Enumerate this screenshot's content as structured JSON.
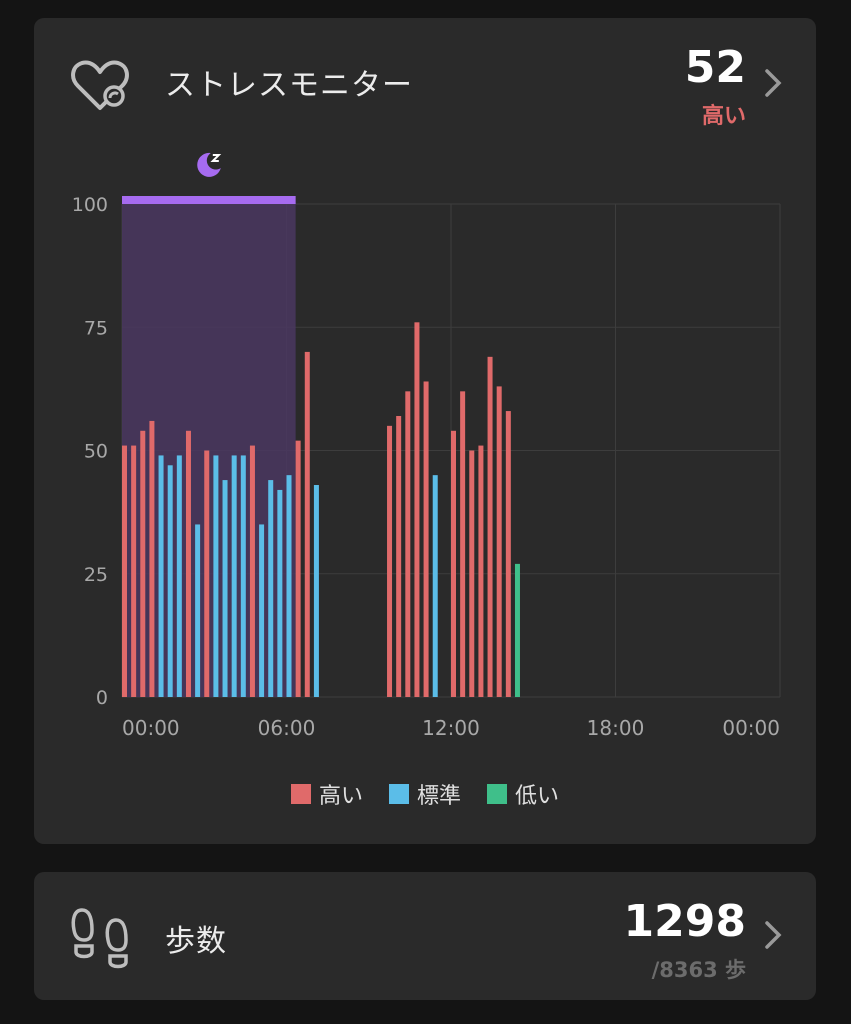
{
  "stress": {
    "title": "ストレスモニター",
    "value": "52",
    "level": "高い",
    "icon": "heart-stress-icon"
  },
  "steps": {
    "title": "歩数",
    "value": "1298",
    "goal": "/8363 歩",
    "icon": "footprints-icon"
  },
  "colors": {
    "high": "#e06a6a",
    "normal": "#5bbde8",
    "low": "#3fbf8a",
    "sleep": "#a66bf0",
    "sleep_fill": "#4a3760"
  },
  "chart_data": {
    "type": "bar",
    "xlabel": "",
    "ylabel": "",
    "ylim": [
      0,
      100
    ],
    "yticks": [
      "0",
      "25",
      "50",
      "75",
      "100"
    ],
    "xticks": [
      "00:00",
      "06:00",
      "12:00",
      "18:00",
      "00:00"
    ],
    "grid": true,
    "legend": [
      {
        "label": "高い",
        "level": "high"
      },
      {
        "label": "標準",
        "level": "normal"
      },
      {
        "label": "低い",
        "level": "low"
      }
    ],
    "sleep_period": {
      "start": "00:00",
      "end": "06:20",
      "icon": "sleep-moon-icon"
    },
    "bars": [
      {
        "time": "00:00",
        "value": 51,
        "level": "high"
      },
      {
        "time": "00:20",
        "value": 51,
        "level": "high"
      },
      {
        "time": "00:40",
        "value": 54,
        "level": "high"
      },
      {
        "time": "01:00",
        "value": 56,
        "level": "high"
      },
      {
        "time": "01:20",
        "value": 49,
        "level": "normal"
      },
      {
        "time": "01:40",
        "value": 47,
        "level": "normal"
      },
      {
        "time": "02:00",
        "value": 49,
        "level": "normal"
      },
      {
        "time": "02:20",
        "value": 54,
        "level": "high"
      },
      {
        "time": "02:40",
        "value": 35,
        "level": "normal"
      },
      {
        "time": "03:00",
        "value": 50,
        "level": "high"
      },
      {
        "time": "03:20",
        "value": 49,
        "level": "normal"
      },
      {
        "time": "03:40",
        "value": 44,
        "level": "normal"
      },
      {
        "time": "04:00",
        "value": 49,
        "level": "normal"
      },
      {
        "time": "04:20",
        "value": 49,
        "level": "normal"
      },
      {
        "time": "04:40",
        "value": 51,
        "level": "high"
      },
      {
        "time": "05:00",
        "value": 35,
        "level": "normal"
      },
      {
        "time": "05:20",
        "value": 44,
        "level": "normal"
      },
      {
        "time": "05:40",
        "value": 42,
        "level": "normal"
      },
      {
        "time": "06:00",
        "value": 45,
        "level": "normal"
      },
      {
        "time": "06:20",
        "value": 52,
        "level": "high"
      },
      {
        "time": "06:40",
        "value": 70,
        "level": "high"
      },
      {
        "time": "07:00",
        "value": 43,
        "level": "normal"
      },
      {
        "time": "09:40",
        "value": 55,
        "level": "high"
      },
      {
        "time": "10:00",
        "value": 57,
        "level": "high"
      },
      {
        "time": "10:20",
        "value": 62,
        "level": "high"
      },
      {
        "time": "10:40",
        "value": 76,
        "level": "high"
      },
      {
        "time": "11:00",
        "value": 64,
        "level": "high"
      },
      {
        "time": "11:20",
        "value": 45,
        "level": "normal"
      },
      {
        "time": "12:00",
        "value": 54,
        "level": "high"
      },
      {
        "time": "12:20",
        "value": 62,
        "level": "high"
      },
      {
        "time": "12:40",
        "value": 50,
        "level": "high"
      },
      {
        "time": "13:00",
        "value": 51,
        "level": "high"
      },
      {
        "time": "13:20",
        "value": 69,
        "level": "high"
      },
      {
        "time": "13:40",
        "value": 63,
        "level": "high"
      },
      {
        "time": "14:00",
        "value": 58,
        "level": "high"
      },
      {
        "time": "14:20",
        "value": 27,
        "level": "low"
      }
    ]
  }
}
